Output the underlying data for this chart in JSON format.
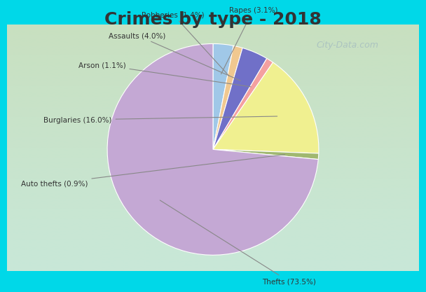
{
  "title": "Crimes by type - 2018",
  "slices": [
    {
      "label": "Thefts",
      "pct": 73.5,
      "color": "#C4A8D4"
    },
    {
      "label": "Burglaries",
      "pct": 16.0,
      "color": "#F0F090"
    },
    {
      "label": "Arson",
      "pct": 1.1,
      "color": "#F4A0A0"
    },
    {
      "label": "Assaults",
      "pct": 4.0,
      "color": "#7070C8"
    },
    {
      "label": "Robberies",
      "pct": 1.4,
      "color": "#F0C890"
    },
    {
      "label": "Rapes",
      "pct": 3.1,
      "color": "#A0C8E8"
    },
    {
      "label": "Auto thefts",
      "pct": 0.9,
      "color": "#A0B870"
    }
  ],
  "bg_outer": "#00D8E8",
  "bg_inner_top": "#C8E8D8",
  "bg_inner_bottom": "#D8E8C0",
  "title_fontsize": 18,
  "watermark": "City-Data.com"
}
